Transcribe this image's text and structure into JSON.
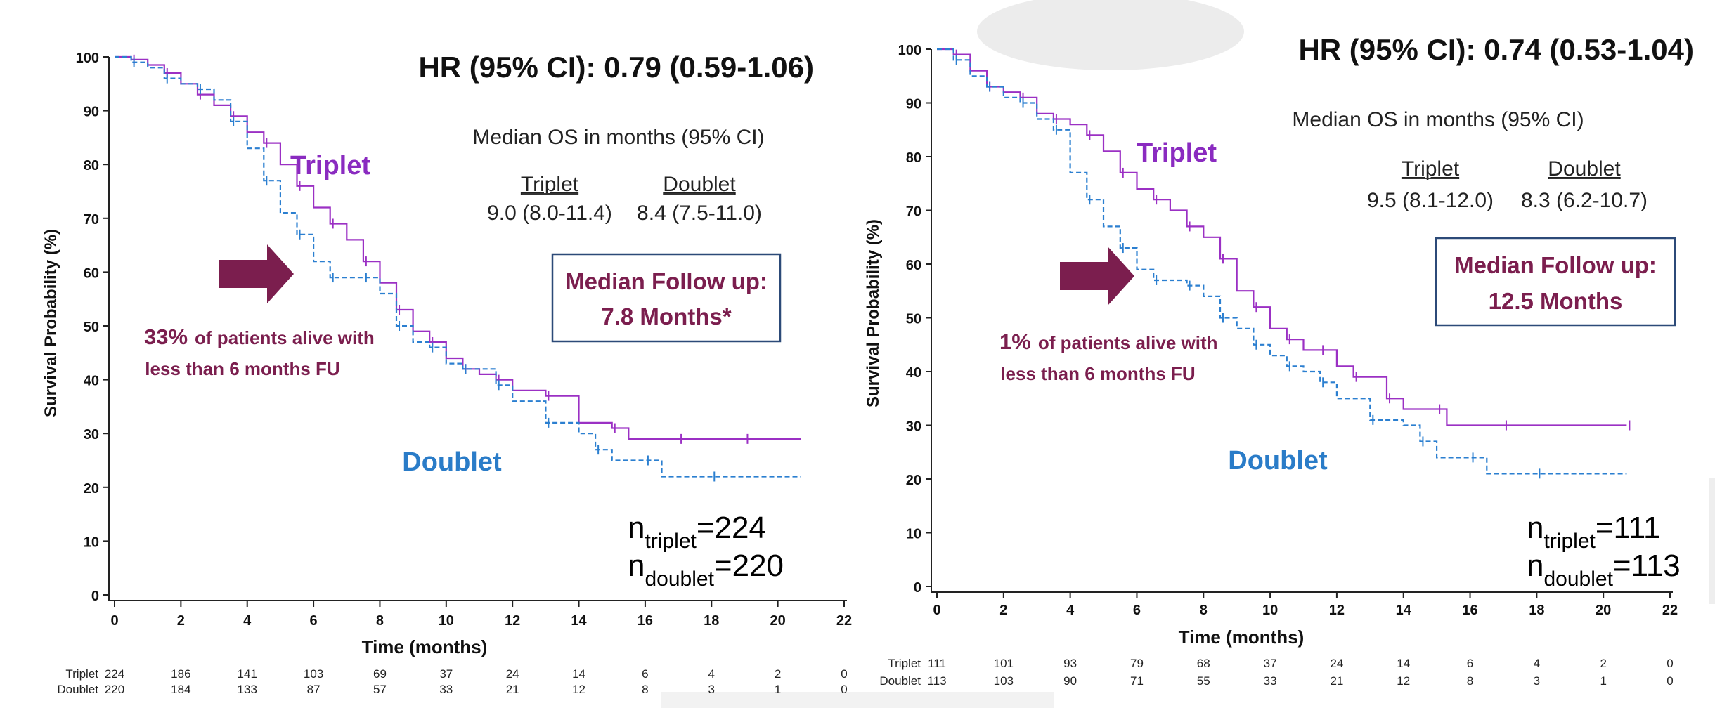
{
  "colors": {
    "triplet": "#9b30c4",
    "doublet": "#2b7fd0",
    "annotation": "#7b1e4e",
    "triplet_label": "#8a2bc0",
    "doublet_label": "#2a7cc8",
    "box_border": "#2c4a78"
  },
  "chart_data": [
    {
      "type": "line",
      "title": "HR (95% CI): 0.79 (0.59-1.06)",
      "xlabel": "Time (months)",
      "ylabel": "Survival Probability (%)",
      "xlim": [
        0,
        22
      ],
      "ylim": [
        0,
        100
      ],
      "x_ticks": [
        "0",
        "2",
        "4",
        "6",
        "8",
        "10",
        "12",
        "14",
        "16",
        "18",
        "20",
        "22"
      ],
      "y_ticks": [
        "0",
        "10",
        "20",
        "30",
        "40",
        "50",
        "60",
        "70",
        "80",
        "90",
        "100"
      ],
      "median_header": "Median OS in months (95% CI)",
      "median_triplet_label": "Triplet",
      "median_triplet_value": "9.0 (8.0-11.4)",
      "median_doublet_label": "Doublet",
      "median_doublet_value": "8.4 (7.5-11.0)",
      "followup_line1": "Median Follow up:",
      "followup_line2": "7.8 Months*",
      "note_pct": "33%",
      "note_line1": "of patients alive with",
      "note_line2": "less than 6 months FU",
      "label_triplet": "Triplet",
      "label_doublet": "Doublet",
      "n_triplet_sub": "triplet",
      "n_triplet_val": "=224",
      "n_doublet_sub": "doublet",
      "n_doublet_val": "=220",
      "risk_times": [
        0,
        2,
        4,
        6,
        8,
        10,
        12,
        14,
        16,
        18,
        20,
        22
      ],
      "risk_table": {
        "triplet_label": "Triplet",
        "doublet_label": "Doublet",
        "triplet": [
          "224",
          "186",
          "141",
          "103",
          "69",
          "37",
          "24",
          "14",
          "6",
          "4",
          "2",
          "0"
        ],
        "doublet": [
          "220",
          "184",
          "133",
          "87",
          "57",
          "33",
          "21",
          "12",
          "8",
          "3",
          "1",
          "0"
        ]
      },
      "series": [
        {
          "name": "Triplet",
          "style": "solid",
          "points": [
            [
              0,
              100
            ],
            [
              0.5,
              99.5
            ],
            [
              1,
              98.5
            ],
            [
              1.5,
              97
            ],
            [
              2,
              95
            ],
            [
              2.5,
              93
            ],
            [
              3,
              91
            ],
            [
              3.5,
              89
            ],
            [
              4,
              86
            ],
            [
              4.5,
              84
            ],
            [
              5,
              80
            ],
            [
              5.5,
              76
            ],
            [
              6,
              72
            ],
            [
              6.5,
              69
            ],
            [
              7,
              66
            ],
            [
              7.5,
              62
            ],
            [
              8,
              58
            ],
            [
              8.5,
              53
            ],
            [
              9,
              49
            ],
            [
              9.5,
              47
            ],
            [
              10,
              44
            ],
            [
              10.5,
              42
            ],
            [
              11,
              41
            ],
            [
              11.5,
              40
            ],
            [
              12,
              38
            ],
            [
              13,
              37
            ],
            [
              14,
              32
            ],
            [
              15,
              31
            ],
            [
              15.5,
              29
            ],
            [
              17,
              29
            ],
            [
              18,
              29
            ],
            [
              19,
              29
            ],
            [
              20.7,
              29
            ]
          ]
        },
        {
          "name": "Doublet",
          "style": "dashed",
          "points": [
            [
              0,
              100
            ],
            [
              0.5,
              99
            ],
            [
              1,
              98
            ],
            [
              1.5,
              96
            ],
            [
              2,
              95
            ],
            [
              2.5,
              94
            ],
            [
              3,
              92
            ],
            [
              3.5,
              88
            ],
            [
              4,
              83
            ],
            [
              4.5,
              77
            ],
            [
              5,
              71
            ],
            [
              5.5,
              67
            ],
            [
              6,
              62
            ],
            [
              6.5,
              59
            ],
            [
              7,
              59
            ],
            [
              7.5,
              59
            ],
            [
              8,
              56
            ],
            [
              8.5,
              50
            ],
            [
              9,
              47
            ],
            [
              9.5,
              46
            ],
            [
              10,
              43
            ],
            [
              10.5,
              42
            ],
            [
              11,
              42
            ],
            [
              11.5,
              39
            ],
            [
              12,
              36
            ],
            [
              13,
              32
            ],
            [
              14,
              30
            ],
            [
              14.5,
              27
            ],
            [
              15,
              25
            ],
            [
              16,
              25
            ],
            [
              16.5,
              22
            ],
            [
              18,
              22
            ],
            [
              20.7,
              22
            ]
          ]
        }
      ]
    },
    {
      "type": "line",
      "title": "HR (95% CI): 0.74 (0.53-1.04)",
      "xlabel": "Time (months)",
      "ylabel": "Survival Probability (%)",
      "xlim": [
        0,
        22
      ],
      "ylim": [
        0,
        100
      ],
      "x_ticks": [
        "0",
        "2",
        "4",
        "6",
        "8",
        "10",
        "12",
        "14",
        "16",
        "18",
        "20",
        "22"
      ],
      "y_ticks": [
        "0",
        "10",
        "20",
        "30",
        "40",
        "50",
        "60",
        "70",
        "80",
        "90",
        "100"
      ],
      "median_header": "Median OS in months (95% CI)",
      "median_triplet_label": "Triplet",
      "median_triplet_value": "9.5 (8.1-12.0)",
      "median_doublet_label": "Doublet",
      "median_doublet_value": "8.3 (6.2-10.7)",
      "followup_line1": "Median Follow up:",
      "followup_line2": "12.5 Months",
      "note_pct": "1%",
      "note_line1": "of patients alive with",
      "note_line2": "less than 6 months FU",
      "label_triplet": "Triplet",
      "label_doublet": "Doublet",
      "n_triplet_sub": "triplet",
      "n_triplet_val": "=111",
      "n_doublet_sub": "doublet",
      "n_doublet_val": "=113",
      "risk_times": [
        0,
        2,
        4,
        6,
        8,
        10,
        12,
        14,
        16,
        18,
        20,
        22
      ],
      "risk_table": {
        "triplet_label": "Triplet",
        "doublet_label": "Doublet",
        "triplet": [
          "111",
          "101",
          "93",
          "79",
          "68",
          "37",
          "24",
          "14",
          "6",
          "4",
          "2",
          "0"
        ],
        "doublet": [
          "113",
          "103",
          "90",
          "71",
          "55",
          "33",
          "21",
          "12",
          "8",
          "3",
          "1",
          "0"
        ]
      },
      "series": [
        {
          "name": "Triplet",
          "style": "solid",
          "points": [
            [
              0,
              100
            ],
            [
              0.5,
              99
            ],
            [
              1,
              96
            ],
            [
              1.5,
              93
            ],
            [
              2,
              92
            ],
            [
              2.5,
              91
            ],
            [
              3,
              88
            ],
            [
              3.5,
              87
            ],
            [
              4,
              86
            ],
            [
              4.5,
              84
            ],
            [
              5,
              81
            ],
            [
              5.5,
              77
            ],
            [
              6,
              74
            ],
            [
              6.5,
              72
            ],
            [
              7,
              70
            ],
            [
              7.5,
              67
            ],
            [
              8,
              65
            ],
            [
              8.5,
              61
            ],
            [
              9,
              55
            ],
            [
              9.5,
              52
            ],
            [
              10,
              48
            ],
            [
              10.5,
              46
            ],
            [
              11,
              44
            ],
            [
              11.5,
              44
            ],
            [
              12,
              41
            ],
            [
              12.5,
              39
            ],
            [
              13,
              39
            ],
            [
              13.5,
              35
            ],
            [
              14,
              33
            ],
            [
              15,
              33
            ],
            [
              15.3,
              30
            ],
            [
              17,
              30
            ],
            [
              19,
              30
            ],
            [
              20.7,
              30
            ]
          ]
        },
        {
          "name": "Doublet",
          "style": "dashed",
          "points": [
            [
              0,
              100
            ],
            [
              0.5,
              98
            ],
            [
              1,
              95
            ],
            [
              1.5,
              93
            ],
            [
              2,
              91
            ],
            [
              2.5,
              90
            ],
            [
              3,
              87
            ],
            [
              3.5,
              85
            ],
            [
              4,
              77
            ],
            [
              4.5,
              72
            ],
            [
              5,
              67
            ],
            [
              5.5,
              63
            ],
            [
              6,
              59
            ],
            [
              6.5,
              57
            ],
            [
              7,
              57
            ],
            [
              7.5,
              56
            ],
            [
              8,
              54
            ],
            [
              8.5,
              50
            ],
            [
              9,
              48
            ],
            [
              9.5,
              45
            ],
            [
              10,
              43
            ],
            [
              10.5,
              41
            ],
            [
              11,
              40
            ],
            [
              11.5,
              38
            ],
            [
              12,
              35
            ],
            [
              13,
              31
            ],
            [
              14,
              30
            ],
            [
              14.5,
              27
            ],
            [
              15,
              24
            ],
            [
              16,
              24
            ],
            [
              16.5,
              21
            ],
            [
              18,
              21
            ],
            [
              20.7,
              21
            ]
          ]
        }
      ]
    }
  ]
}
